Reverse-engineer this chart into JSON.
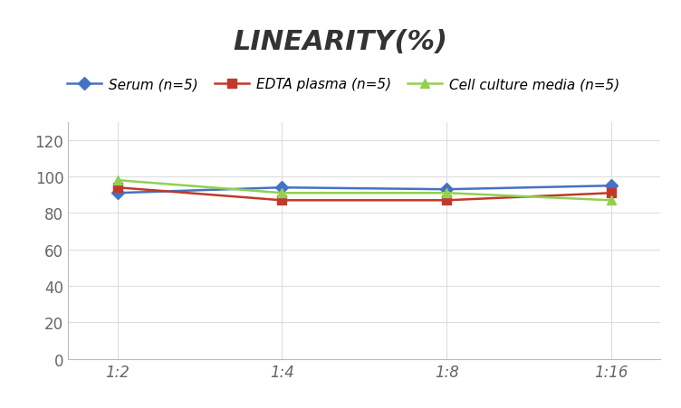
{
  "title": "LINEARITY(%)",
  "x_labels": [
    "1:2",
    "1:4",
    "1:8",
    "1:16"
  ],
  "x_positions": [
    0,
    1,
    2,
    3
  ],
  "series": [
    {
      "label": "Serum (n=5)",
      "color": "#4472C4",
      "marker": "D",
      "values": [
        91,
        94,
        93,
        95
      ]
    },
    {
      "label": "EDTA plasma (n=5)",
      "color": "#C0392B",
      "marker": "s",
      "values": [
        94,
        87,
        87,
        91
      ]
    },
    {
      "label": "Cell culture media (n=5)",
      "color": "#92D050",
      "marker": "^",
      "values": [
        98,
        91,
        91,
        87
      ]
    }
  ],
  "ylim": [
    0,
    130
  ],
  "yticks": [
    0,
    20,
    40,
    60,
    80,
    100,
    120
  ],
  "background_color": "#FFFFFF",
  "grid_color": "#DDDDDD",
  "title_fontsize": 22,
  "legend_fontsize": 11,
  "tick_fontsize": 12
}
